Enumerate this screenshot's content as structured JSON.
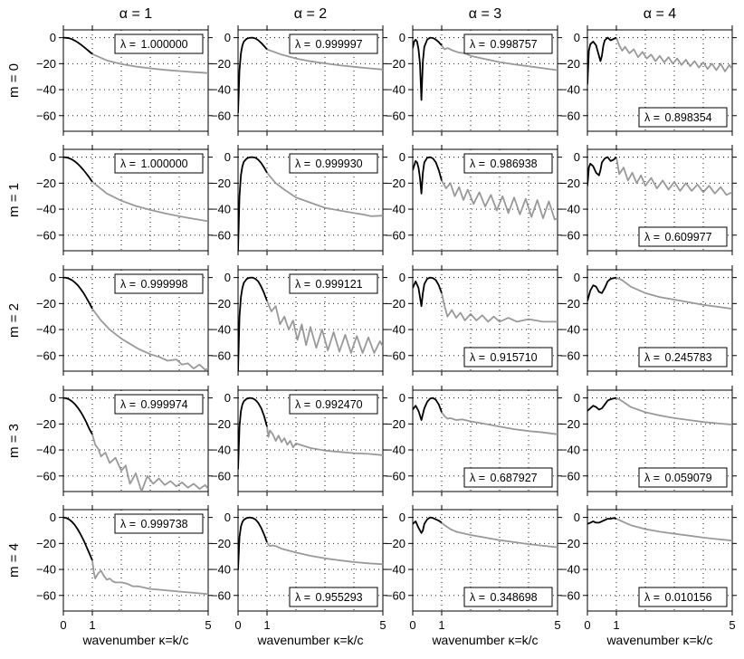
{
  "chart_data": {
    "type": "line",
    "description_axes": {
      "xlabel": "wavenumber κ=k/c",
      "x_ticks": [
        "0",
        "1",
        "5"
      ],
      "xlim": [
        0,
        5
      ],
      "ylim": [
        -72,
        6
      ],
      "y_ticks": [
        "0",
        "−20",
        "−40",
        "−60"
      ],
      "y_tick_values": [
        0,
        -20,
        -40,
        -60
      ]
    },
    "column_titles": [
      "α = 1",
      "α = 2",
      "α = 3",
      "α = 4"
    ],
    "row_titles": [
      "m = 0",
      "m = 1",
      "m = 2",
      "m = 3",
      "m = 4"
    ],
    "lambda_prefix": "λ = ",
    "colors": {
      "inside": "#000000",
      "outside": "#999999"
    },
    "panels": [
      {
        "row": 0,
        "col": 0,
        "lambda": "1.000000",
        "box": "top",
        "x": [
          0,
          0.1,
          0.2,
          0.3,
          0.4,
          0.5,
          0.6,
          0.7,
          0.8,
          0.9,
          1,
          1.5,
          2,
          2.5,
          3,
          3.5,
          4,
          4.5,
          5
        ],
        "y": [
          0,
          -0.1,
          -0.4,
          -1.2,
          -2.3,
          -3.7,
          -5.2,
          -7,
          -8.8,
          -10.7,
          -12.6,
          -17.5,
          -20.3,
          -22.2,
          -23.6,
          -24.8,
          -25.7,
          -26.5,
          -27.2
        ]
      },
      {
        "row": 0,
        "col": 1,
        "lambda": "0.999997",
        "box": "top",
        "x": [
          0,
          0.05,
          0.1,
          0.15,
          0.2,
          0.3,
          0.4,
          0.5,
          0.6,
          0.7,
          0.8,
          0.9,
          1,
          1.5,
          2,
          2.5,
          3,
          3.5,
          4,
          4.5,
          5
        ],
        "y": [
          -58,
          -25,
          -12,
          -6,
          -3,
          -0.8,
          -0.1,
          0,
          -0.6,
          -2,
          -4,
          -6.5,
          -9,
          -13,
          -16,
          -18.2,
          -19.8,
          -21.2,
          -22.4,
          -23.5,
          -24.5
        ]
      },
      {
        "row": 0,
        "col": 2,
        "lambda": "0.998757",
        "box": "top",
        "x": [
          0,
          0.05,
          0.1,
          0.15,
          0.2,
          0.25,
          0.3,
          0.35,
          0.4,
          0.5,
          0.6,
          0.7,
          0.8,
          0.9,
          1,
          1.1,
          1.2,
          1.4,
          1.6,
          1.8,
          2,
          2.5,
          3,
          3.5,
          4,
          4.5,
          5
        ],
        "y": [
          -8,
          -3,
          -1.5,
          -3,
          -9,
          -20,
          -48,
          -18,
          -7,
          -1.5,
          0,
          -0.3,
          -1.5,
          -3.5,
          -6,
          -9,
          -8,
          -10,
          -11.5,
          -12,
          -14,
          -16.5,
          -18.8,
          -20.5,
          -22,
          -23.5,
          -25
        ]
      },
      {
        "row": 0,
        "col": 3,
        "lambda": "0.898354",
        "box": "bottom",
        "x": [
          0,
          0.05,
          0.1,
          0.2,
          0.3,
          0.4,
          0.45,
          0.5,
          0.55,
          0.6,
          0.7,
          0.8,
          0.9,
          1,
          1.1,
          1.2,
          1.3,
          1.45,
          1.6,
          1.75,
          1.9,
          2.05,
          2.2,
          2.35,
          2.5,
          2.65,
          2.8,
          2.95,
          3.1,
          3.25,
          3.4,
          3.55,
          3.7,
          3.85,
          4,
          4.15,
          4.3,
          4.45,
          4.6,
          4.75,
          4.9,
          5
        ],
        "y": [
          -36,
          -10,
          -5,
          -3,
          -6,
          -14,
          -18,
          -14,
          -6,
          -2,
          0,
          -2,
          -1,
          0,
          -6,
          -10,
          -7,
          -12,
          -9,
          -15,
          -11,
          -16,
          -13,
          -18,
          -14,
          -19,
          -15,
          -20,
          -16,
          -21,
          -17,
          -22,
          -18,
          -23,
          -19,
          -24,
          -20,
          -25,
          -20,
          -26,
          -21,
          -24
        ]
      },
      {
        "row": 1,
        "col": 0,
        "lambda": "1.000000",
        "box": "top",
        "x": [
          0,
          0.1,
          0.2,
          0.3,
          0.4,
          0.5,
          0.6,
          0.7,
          0.8,
          0.9,
          1,
          1.5,
          2,
          2.5,
          3,
          3.5,
          4,
          4.5,
          5
        ],
        "y": [
          0,
          -0.2,
          -0.8,
          -1.8,
          -3.3,
          -5.2,
          -7.5,
          -10,
          -12.8,
          -15.8,
          -19,
          -28,
          -33.5,
          -37.5,
          -40.6,
          -43.2,
          -45.5,
          -47.5,
          -49.3
        ]
      },
      {
        "row": 1,
        "col": 1,
        "lambda": "0.999930",
        "box": "top",
        "x": [
          0,
          0.05,
          0.1,
          0.15,
          0.2,
          0.3,
          0.4,
          0.5,
          0.6,
          0.7,
          0.8,
          0.9,
          1,
          1.3,
          1.6,
          2,
          2.5,
          3,
          3.5,
          4,
          4.3,
          4.6,
          5
        ],
        "y": [
          -72,
          -30,
          -14,
          -7,
          -3.5,
          -1,
          -0.1,
          0,
          -0.5,
          -2,
          -4.5,
          -8,
          -12,
          -20,
          -25,
          -31,
          -35,
          -39,
          -41,
          -43,
          -44,
          -45.5,
          -45
        ]
      },
      {
        "row": 1,
        "col": 2,
        "lambda": "0.986938",
        "box": "top",
        "x": [
          0,
          0.1,
          0.15,
          0.2,
          0.25,
          0.3,
          0.35,
          0.4,
          0.5,
          0.6,
          0.7,
          0.8,
          0.9,
          1,
          1.15,
          1.3,
          1.45,
          1.6,
          1.75,
          1.9,
          2.1,
          2.3,
          2.5,
          2.7,
          2.9,
          3.1,
          3.3,
          3.5,
          3.7,
          3.9,
          4.1,
          4.3,
          4.5,
          4.7,
          4.9,
          5
        ],
        "y": [
          -10,
          -3,
          -4,
          -8,
          -16,
          -28,
          -12,
          -4,
          -0.5,
          0,
          -1,
          -4,
          -10,
          -18,
          -24,
          -20,
          -30,
          -23,
          -33,
          -25,
          -36,
          -27,
          -38,
          -29,
          -41,
          -30,
          -43,
          -31,
          -44,
          -32,
          -46,
          -33,
          -47,
          -34,
          -48,
          -47
        ]
      },
      {
        "row": 1,
        "col": 3,
        "lambda": "0.609977",
        "box": "bottom",
        "x": [
          0,
          0.05,
          0.1,
          0.2,
          0.3,
          0.4,
          0.45,
          0.5,
          0.6,
          0.7,
          0.8,
          0.9,
          1,
          1.1,
          1.25,
          1.4,
          1.55,
          1.7,
          1.85,
          2,
          2.2,
          2.4,
          2.6,
          2.8,
          3,
          3.2,
          3.4,
          3.6,
          3.8,
          4,
          4.2,
          4.4,
          4.6,
          4.8,
          5
        ],
        "y": [
          -22,
          -8,
          -5,
          -7,
          -12,
          -14,
          -10,
          -4,
          -1,
          0,
          -3,
          -2,
          0,
          -13,
          -8,
          -18,
          -12,
          -20,
          -14,
          -22,
          -16,
          -24,
          -18,
          -25,
          -19,
          -26,
          -20,
          -26,
          -21,
          -27,
          -22,
          -28,
          -23,
          -29,
          -27
        ]
      },
      {
        "row": 2,
        "col": 0,
        "lambda": "0.999998",
        "box": "top",
        "x": [
          0,
          0.1,
          0.2,
          0.3,
          0.4,
          0.5,
          0.6,
          0.7,
          0.8,
          0.9,
          1,
          1.3,
          1.6,
          2,
          2.3,
          2.6,
          3,
          3.3,
          3.6,
          3.9,
          4.1,
          4.3,
          4.5,
          4.7,
          4.9,
          5
        ],
        "y": [
          0,
          -0.2,
          -0.9,
          -2.1,
          -3.8,
          -6,
          -8.8,
          -12,
          -15.8,
          -19.8,
          -24,
          -33,
          -40,
          -47,
          -51,
          -55,
          -59,
          -61,
          -64,
          -63,
          -67,
          -66,
          -70,
          -67,
          -71,
          -70
        ]
      },
      {
        "row": 2,
        "col": 1,
        "lambda": "0.999121",
        "box": "top",
        "x": [
          0,
          0.05,
          0.1,
          0.15,
          0.2,
          0.3,
          0.4,
          0.5,
          0.6,
          0.7,
          0.8,
          0.9,
          1,
          1.15,
          1.3,
          1.45,
          1.6,
          1.75,
          1.9,
          2.05,
          2.2,
          2.35,
          2.5,
          2.7,
          2.9,
          3.1,
          3.3,
          3.5,
          3.7,
          3.9,
          4.1,
          4.3,
          4.5,
          4.7,
          4.9,
          5
        ],
        "y": [
          -72,
          -30,
          -15,
          -8,
          -4,
          -1,
          -0.1,
          0,
          -1,
          -3,
          -7,
          -12,
          -18,
          -26,
          -22,
          -36,
          -30,
          -40,
          -33,
          -48,
          -36,
          -52,
          -38,
          -54,
          -40,
          -56,
          -42,
          -57,
          -44,
          -58,
          -45,
          -58,
          -46,
          -58,
          -49,
          -53
        ]
      },
      {
        "row": 2,
        "col": 2,
        "lambda": "0.915710",
        "box": "bottom",
        "x": [
          0,
          0.1,
          0.2,
          0.25,
          0.3,
          0.35,
          0.4,
          0.5,
          0.6,
          0.7,
          0.8,
          0.9,
          1,
          1.1,
          1.2,
          1.35,
          1.5,
          1.65,
          1.8,
          2,
          2.2,
          2.4,
          2.6,
          2.8,
          3,
          3.3,
          3.6,
          4,
          4.5,
          5
        ],
        "y": [
          -8,
          -3,
          -8,
          -15,
          -22,
          -12,
          -5,
          -1,
          0,
          -0.5,
          -2,
          -6,
          -12,
          -22,
          -30,
          -25,
          -31,
          -27,
          -33,
          -28,
          -33,
          -29,
          -34,
          -30,
          -34,
          -31,
          -34,
          -32,
          -34,
          -34
        ]
      },
      {
        "row": 2,
        "col": 3,
        "lambda": "0.245783",
        "box": "bottom",
        "x": [
          0,
          0.1,
          0.2,
          0.3,
          0.4,
          0.5,
          0.6,
          0.7,
          0.8,
          0.9,
          1,
          1.2,
          1.5,
          2,
          2.5,
          3,
          3.5,
          4,
          4.5,
          5
        ],
        "y": [
          -18,
          -10,
          -6,
          -7,
          -11,
          -12,
          -8,
          -3,
          -1,
          -0.5,
          0,
          -2,
          -7,
          -12,
          -15,
          -17,
          -19,
          -21,
          -22.5,
          -24
        ]
      },
      {
        "row": 3,
        "col": 0,
        "lambda": "0.999974",
        "box": "top",
        "x": [
          0,
          0.1,
          0.2,
          0.3,
          0.4,
          0.5,
          0.6,
          0.7,
          0.8,
          0.9,
          1,
          1.1,
          1.2,
          1.3,
          1.45,
          1.6,
          1.8,
          2,
          2.15,
          2.3,
          2.5,
          2.7,
          2.9,
          3.1,
          3.3,
          3.5,
          3.7,
          3.9,
          4.1,
          4.3,
          4.5,
          4.7,
          4.9,
          5
        ],
        "y": [
          0,
          -0.3,
          -1.2,
          -2.7,
          -4.8,
          -7.5,
          -10.8,
          -14.6,
          -19,
          -24,
          -28,
          -36,
          -39,
          -45,
          -42,
          -50,
          -46,
          -56,
          -52,
          -66,
          -58,
          -72,
          -60,
          -66,
          -62,
          -67,
          -64,
          -68,
          -65,
          -69,
          -66,
          -70,
          -67,
          -70
        ]
      },
      {
        "row": 3,
        "col": 1,
        "lambda": "0.992470",
        "box": "top",
        "x": [
          0,
          0.05,
          0.1,
          0.15,
          0.2,
          0.3,
          0.4,
          0.5,
          0.6,
          0.7,
          0.8,
          0.9,
          1,
          1.05,
          1.1,
          1.2,
          1.3,
          1.4,
          1.5,
          1.6,
          1.7,
          1.8,
          1.9,
          2,
          2.5,
          3,
          3.5,
          4,
          4.5,
          5
        ],
        "y": [
          -55,
          -22,
          -10,
          -5,
          -2.5,
          -0.6,
          0,
          -0.3,
          -1.5,
          -4,
          -8,
          -14,
          -22,
          -30,
          -25,
          -28,
          -33,
          -29,
          -34,
          -31,
          -36,
          -33,
          -38,
          -35,
          -38.5,
          -40.5,
          -41.5,
          -42.5,
          -43,
          -44
        ]
      },
      {
        "row": 3,
        "col": 2,
        "lambda": "0.687927",
        "box": "bottom",
        "x": [
          0,
          0.1,
          0.2,
          0.3,
          0.4,
          0.5,
          0.6,
          0.7,
          0.8,
          0.9,
          1,
          1.1,
          1.2,
          1.3,
          1.5,
          1.7,
          2,
          2.5,
          3,
          3.5,
          4,
          4.5,
          5
        ],
        "y": [
          -9,
          -6,
          -10,
          -17,
          -8,
          -3,
          -0.5,
          0,
          -1.5,
          -5,
          -11,
          -14,
          -16,
          -15.5,
          -17,
          -16.5,
          -18,
          -20,
          -22,
          -24,
          -25.5,
          -26.5,
          -28
        ]
      },
      {
        "row": 3,
        "col": 3,
        "lambda": "0.059079",
        "box": "bottom",
        "x": [
          0,
          0.1,
          0.2,
          0.3,
          0.4,
          0.5,
          0.6,
          0.7,
          0.8,
          0.9,
          1,
          1.1,
          1.3,
          1.5,
          2,
          2.5,
          3,
          3.5,
          4,
          4.5,
          5
        ],
        "y": [
          -10,
          -8,
          -6,
          -7,
          -9,
          -8,
          -5,
          -2,
          -1,
          -0.5,
          0,
          -1,
          -4,
          -7,
          -11,
          -13.5,
          -15.5,
          -17,
          -18.5,
          -19.5,
          -20.5
        ]
      },
      {
        "row": 4,
        "col": 0,
        "lambda": "0.999738",
        "box": "top",
        "x": [
          0,
          0.1,
          0.2,
          0.3,
          0.4,
          0.5,
          0.6,
          0.7,
          0.8,
          0.9,
          1,
          1.05,
          1.1,
          1.2,
          1.3,
          1.4,
          1.5,
          1.6,
          1.7,
          1.8,
          2,
          2.2,
          2.4,
          2.6,
          3,
          3.5,
          4,
          4.5,
          5
        ],
        "y": [
          0,
          -0.4,
          -1.5,
          -3.4,
          -6,
          -9.3,
          -13.2,
          -17.6,
          -22.6,
          -27.8,
          -33,
          -42,
          -47,
          -43,
          -41,
          -45,
          -48,
          -47,
          -49,
          -50,
          -50,
          -51,
          -53,
          -53,
          -55,
          -56,
          -57,
          -58,
          -59
        ]
      },
      {
        "row": 4,
        "col": 1,
        "lambda": "0.955293",
        "box": "bottom",
        "x": [
          0,
          0.05,
          0.1,
          0.15,
          0.2,
          0.3,
          0.4,
          0.5,
          0.6,
          0.7,
          0.8,
          0.9,
          1,
          1.05,
          1.1,
          1.2,
          1.3,
          1.5,
          2,
          2.5,
          3,
          3.5,
          4,
          4.5,
          5
        ],
        "y": [
          -40,
          -15,
          -7,
          -3.5,
          -1.8,
          -0.4,
          0,
          -0.4,
          -1.5,
          -4,
          -8,
          -13,
          -19,
          -21,
          -22,
          -21.5,
          -22,
          -24,
          -27,
          -29.5,
          -31.5,
          -33,
          -34.3,
          -35.3,
          -36
        ]
      },
      {
        "row": 4,
        "col": 2,
        "lambda": "0.348698",
        "box": "bottom",
        "x": [
          0,
          0.1,
          0.2,
          0.3,
          0.35,
          0.4,
          0.5,
          0.6,
          0.7,
          0.8,
          0.9,
          1,
          1.1,
          1.3,
          1.5,
          2,
          2.5,
          3,
          3.5,
          4,
          4.5,
          5
        ],
        "y": [
          -5,
          -3,
          -8,
          -12,
          -10,
          -5,
          -1.5,
          0,
          -0.5,
          -1.5,
          -2.5,
          -4,
          -6,
          -9,
          -11,
          -13.5,
          -15.5,
          -17.5,
          -19,
          -20.5,
          -21.8,
          -23
        ]
      },
      {
        "row": 4,
        "col": 3,
        "lambda": "0.010156",
        "box": "bottom",
        "x": [
          0,
          0.1,
          0.2,
          0.3,
          0.4,
          0.5,
          0.6,
          0.7,
          0.8,
          0.9,
          1,
          1.1,
          1.3,
          1.5,
          2,
          2.5,
          3,
          3.5,
          4,
          4.5,
          5
        ],
        "y": [
          -5,
          -4,
          -3,
          -4,
          -4,
          -3,
          -2,
          -1,
          -1,
          -0.5,
          -1,
          -2,
          -4,
          -6,
          -9,
          -11,
          -12.5,
          -14,
          -15.5,
          -16.7,
          -17.8
        ]
      }
    ]
  }
}
